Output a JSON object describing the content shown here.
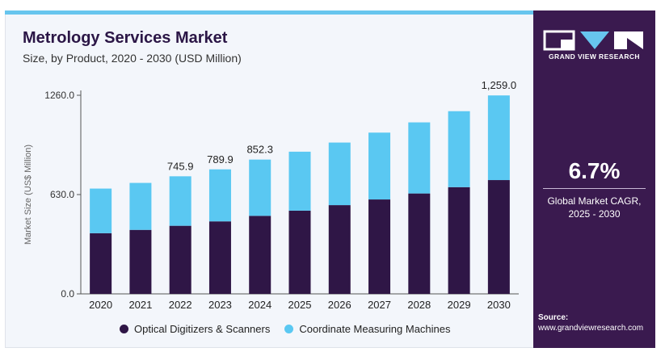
{
  "header": {
    "title": "Metrology Services Market",
    "subtitle": "Size, by Product, 2020 - 2030 (USD Million)"
  },
  "brand": {
    "name": "GRAND VIEW RESEARCH"
  },
  "cagr": {
    "value": "6.7%",
    "label_line1": "Global Market CAGR,",
    "label_line2": "2025 - 2030"
  },
  "source": {
    "label": "Source:",
    "url": "www.grandviewresearch.com"
  },
  "colors": {
    "series_dark": "#2f1646",
    "series_light": "#5ac8f2",
    "sidebar": "#3a1a4f",
    "accent_bar": "#67c5ee"
  },
  "chart_data": {
    "type": "bar",
    "stacked": true,
    "ylabel": "Market Size (US$ Million)",
    "ylim": [
      0,
      1260
    ],
    "yticks": [
      "0.0",
      "630.0",
      "1260.0"
    ],
    "yticks_values": [
      0,
      630,
      1260
    ],
    "grid": false,
    "legend_position": "bottom",
    "categories": [
      "2020",
      "2021",
      "2022",
      "2023",
      "2024",
      "2025",
      "2026",
      "2027",
      "2028",
      "2029",
      "2030"
    ],
    "series": [
      {
        "name": "Optical Digitizers & Scanners",
        "color": "#2f1646",
        "values": [
          385,
          406,
          432,
          460,
          495,
          528,
          563,
          599,
          637,
          677,
          722
        ]
      },
      {
        "name": "Coordinate Measuring Machines",
        "color": "#5ac8f2",
        "values": [
          283,
          298,
          314,
          330,
          357,
          374,
          397,
          424,
          451,
          482,
          537
        ]
      }
    ],
    "totals": [
      668,
      704,
      745.9,
      789.9,
      852.3,
      902,
      960,
      1023,
      1088,
      1159,
      1259.0
    ],
    "data_labels": [
      "",
      "",
      "745.9",
      "789.9",
      "852.3",
      "",
      "",
      "",
      "",
      "",
      "1,259.0"
    ]
  }
}
